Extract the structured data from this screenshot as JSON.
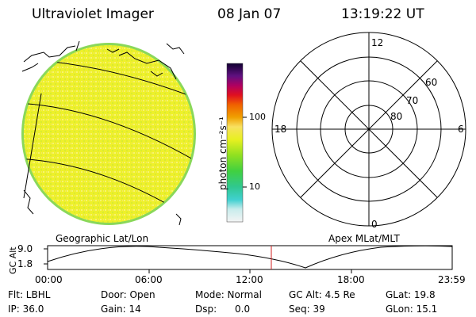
{
  "header": {
    "title": "Ultraviolet Imager",
    "date": "08 Jan 07",
    "time": "13:19:22 UT"
  },
  "colorbar": {
    "unit_label": "photon cm⁻²s⁻¹",
    "ticks": [
      "100",
      "10"
    ]
  },
  "polar_plot": {
    "mlt_labels": [
      "12",
      "18",
      "6",
      "0"
    ],
    "lat_labels": [
      "60",
      "70",
      "80"
    ]
  },
  "labels": {
    "geo": "Geographic Lat/Lon",
    "apex": "Apex MLat/MLT"
  },
  "orbit_plot": {
    "ylabel": "GC Alt",
    "yticks": [
      "9.0",
      "1.8"
    ],
    "xticks": [
      "00:00",
      "06:00",
      "12:00",
      "18:00",
      "23:59"
    ]
  },
  "info": {
    "filter": "Flt: LBHL",
    "ip": "IP: 36.0",
    "door": "Door: Open",
    "gain": "Gain: 14",
    "mode": "Mode: Normal",
    "dsp_label": "Dsp:",
    "dsp_value": "0.0",
    "gc_alt": "GC Alt: 4.5 Re",
    "seq": "Seq: 39",
    "glat": "GLat: 19.8",
    "glon": "GLon: 15.1"
  },
  "colors": {
    "disk_fill": "#ecf028",
    "disk_edge": "#7ddc4b",
    "time_marker": "#d02020"
  }
}
